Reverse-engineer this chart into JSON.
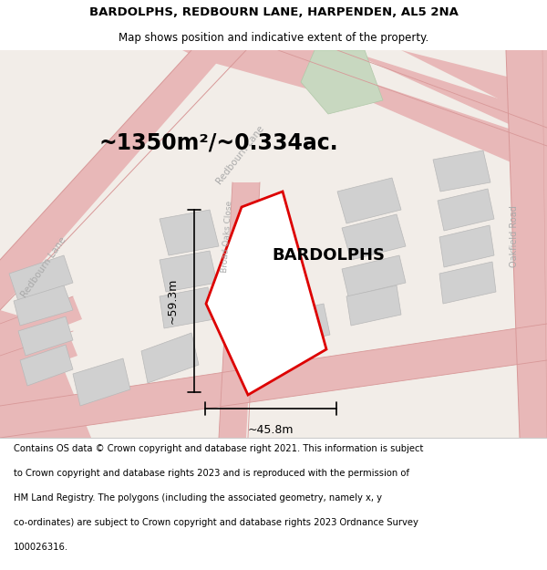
{
  "title_line1": "BARDOLPHS, REDBOURN LANE, HARPENDEN, AL5 2NA",
  "title_line2": "Map shows position and indicative extent of the property.",
  "area_text": "~1350m²/~0.334ac.",
  "property_label": "BARDOLPHS",
  "dim_width": "~45.8m",
  "dim_height": "~59.3m",
  "footer_text": "Contains OS data © Crown copyright and database right 2021. This information is subject to Crown copyright and database rights 2023 and is reproduced with the permission of HM Land Registry. The polygons (including the associated geometry, namely x, y co-ordinates) are subject to Crown copyright and database rights 2023 Ordnance Survey 100026316.",
  "map_bg": "#f2ede8",
  "road_fill": "#e8b8b8",
  "road_edge": "#d89898",
  "block_fill": "#d0d0d0",
  "block_edge": "#b8b8b8",
  "green_fill": "#c8d8c0",
  "green_edge": "#b0c8a8",
  "property_outline": "#dd0000",
  "property_fill": "#ffffff",
  "text_color": "#000000",
  "road_label_color": "#aaaaaa",
  "title_fontsize": 9.5,
  "subtitle_fontsize": 8.5,
  "area_fontsize": 17,
  "property_label_fontsize": 13,
  "dim_fontsize": 9,
  "footer_fontsize": 7.2
}
